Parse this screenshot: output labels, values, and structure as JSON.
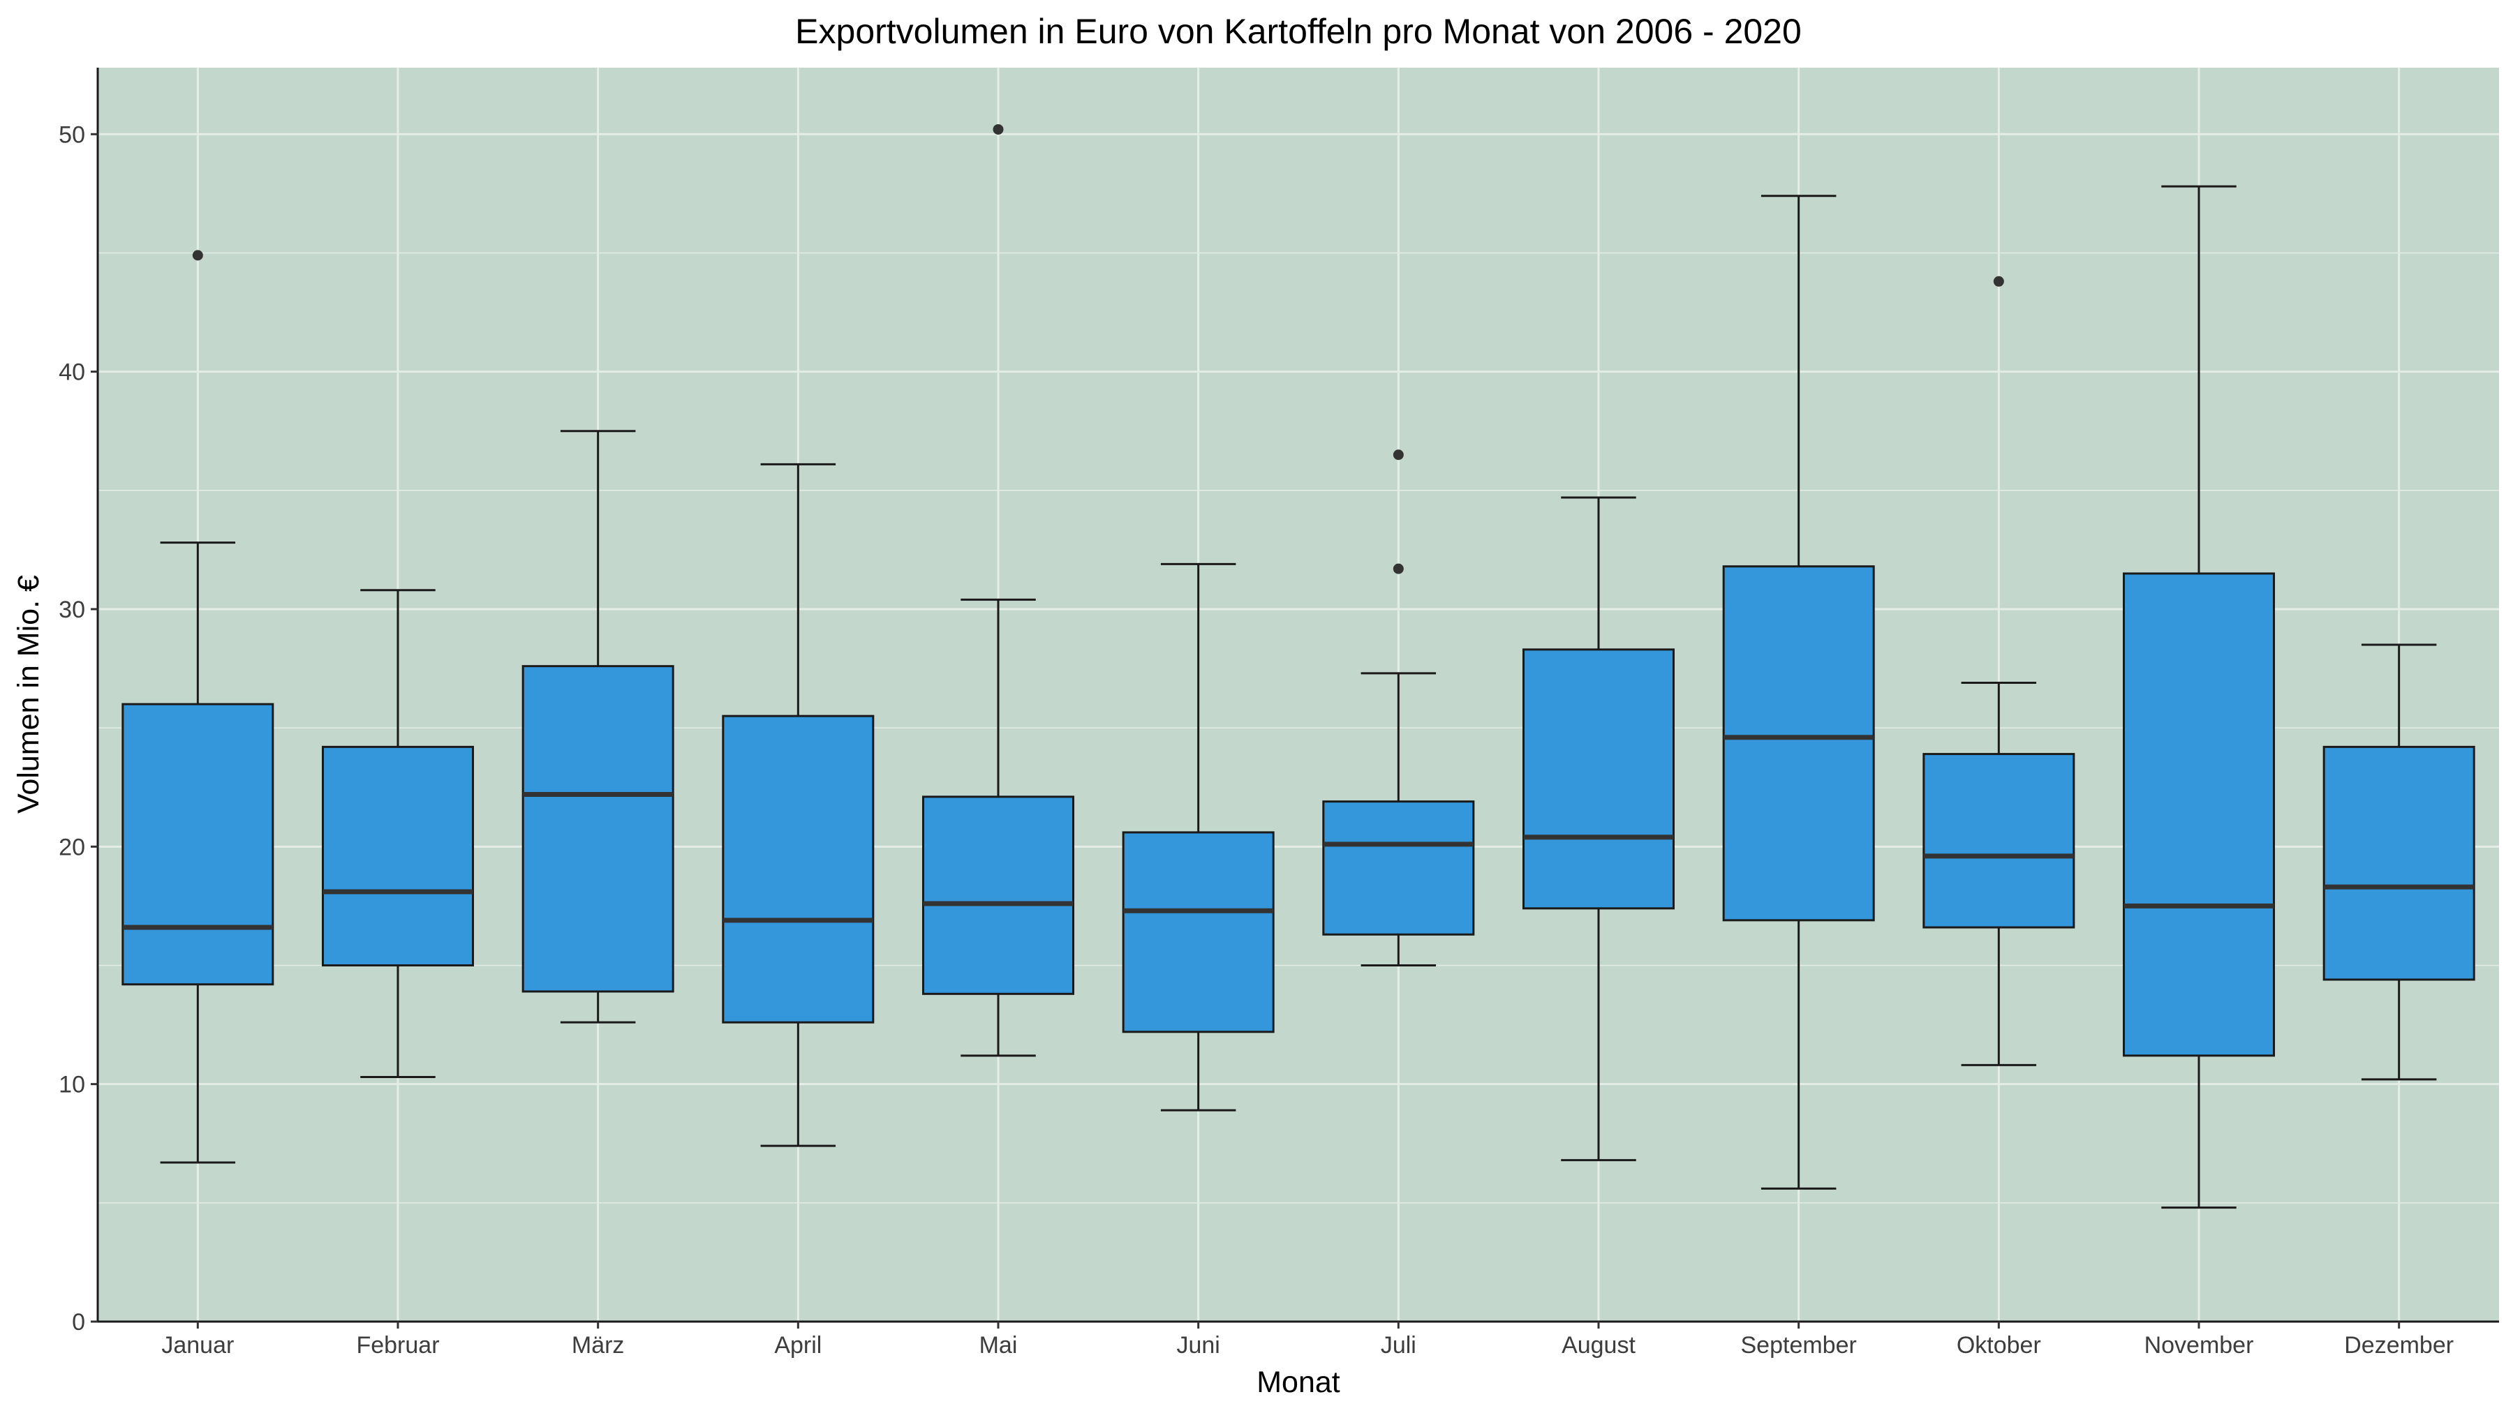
{
  "chart_data": {
    "type": "box",
    "title": "Exportvolumen in Euro von Kartoffeln pro Monat von 2006 - 2020",
    "xlabel": "Monat",
    "ylabel": "Volumen in Mio. €",
    "ylim": [
      0,
      52.8
    ],
    "yticks": [
      0,
      10,
      20,
      30,
      40,
      50
    ],
    "grid": true,
    "legend": "none",
    "colors": {
      "panel_background": "#c3d7cd",
      "grid": "#e4ede8",
      "box_fill": "#3597db",
      "box_stroke": "#1a1a1a",
      "median": "#333333",
      "outlier": "#333333"
    },
    "categories": [
      "Januar",
      "Februar",
      "März",
      "April",
      "Mai",
      "Juni",
      "Juli",
      "August",
      "September",
      "Oktober",
      "November",
      "Dezember"
    ],
    "boxes": [
      {
        "lower_whisker": 6.7,
        "q1": 14.2,
        "median": 16.6,
        "q3": 26.0,
        "upper_whisker": 32.8,
        "outliers": [
          44.9
        ]
      },
      {
        "lower_whisker": 10.3,
        "q1": 15.0,
        "median": 18.1,
        "q3": 24.2,
        "upper_whisker": 30.8,
        "outliers": []
      },
      {
        "lower_whisker": 12.6,
        "q1": 13.9,
        "median": 22.2,
        "q3": 27.6,
        "upper_whisker": 37.5,
        "outliers": []
      },
      {
        "lower_whisker": 7.4,
        "q1": 12.6,
        "median": 16.9,
        "q3": 25.5,
        "upper_whisker": 36.1,
        "outliers": []
      },
      {
        "lower_whisker": 11.2,
        "q1": 13.8,
        "median": 17.6,
        "q3": 22.1,
        "upper_whisker": 30.4,
        "outliers": [
          50.2
        ]
      },
      {
        "lower_whisker": 8.9,
        "q1": 12.2,
        "median": 17.3,
        "q3": 20.6,
        "upper_whisker": 31.9,
        "outliers": []
      },
      {
        "lower_whisker": 15.0,
        "q1": 16.3,
        "median": 20.1,
        "q3": 21.9,
        "upper_whisker": 27.3,
        "outliers": [
          36.5,
          31.7
        ]
      },
      {
        "lower_whisker": 6.8,
        "q1": 17.4,
        "median": 20.4,
        "q3": 28.3,
        "upper_whisker": 34.7,
        "outliers": []
      },
      {
        "lower_whisker": 5.6,
        "q1": 16.9,
        "median": 24.6,
        "q3": 31.8,
        "upper_whisker": 47.4,
        "outliers": []
      },
      {
        "lower_whisker": 10.8,
        "q1": 16.6,
        "median": 19.6,
        "q3": 23.9,
        "upper_whisker": 26.9,
        "outliers": [
          43.8
        ]
      },
      {
        "lower_whisker": 4.8,
        "q1": 11.2,
        "median": 17.5,
        "q3": 31.5,
        "upper_whisker": 47.8,
        "outliers": []
      },
      {
        "lower_whisker": 10.2,
        "q1": 14.4,
        "median": 18.3,
        "q3": 24.2,
        "upper_whisker": 28.5,
        "outliers": []
      }
    ]
  }
}
